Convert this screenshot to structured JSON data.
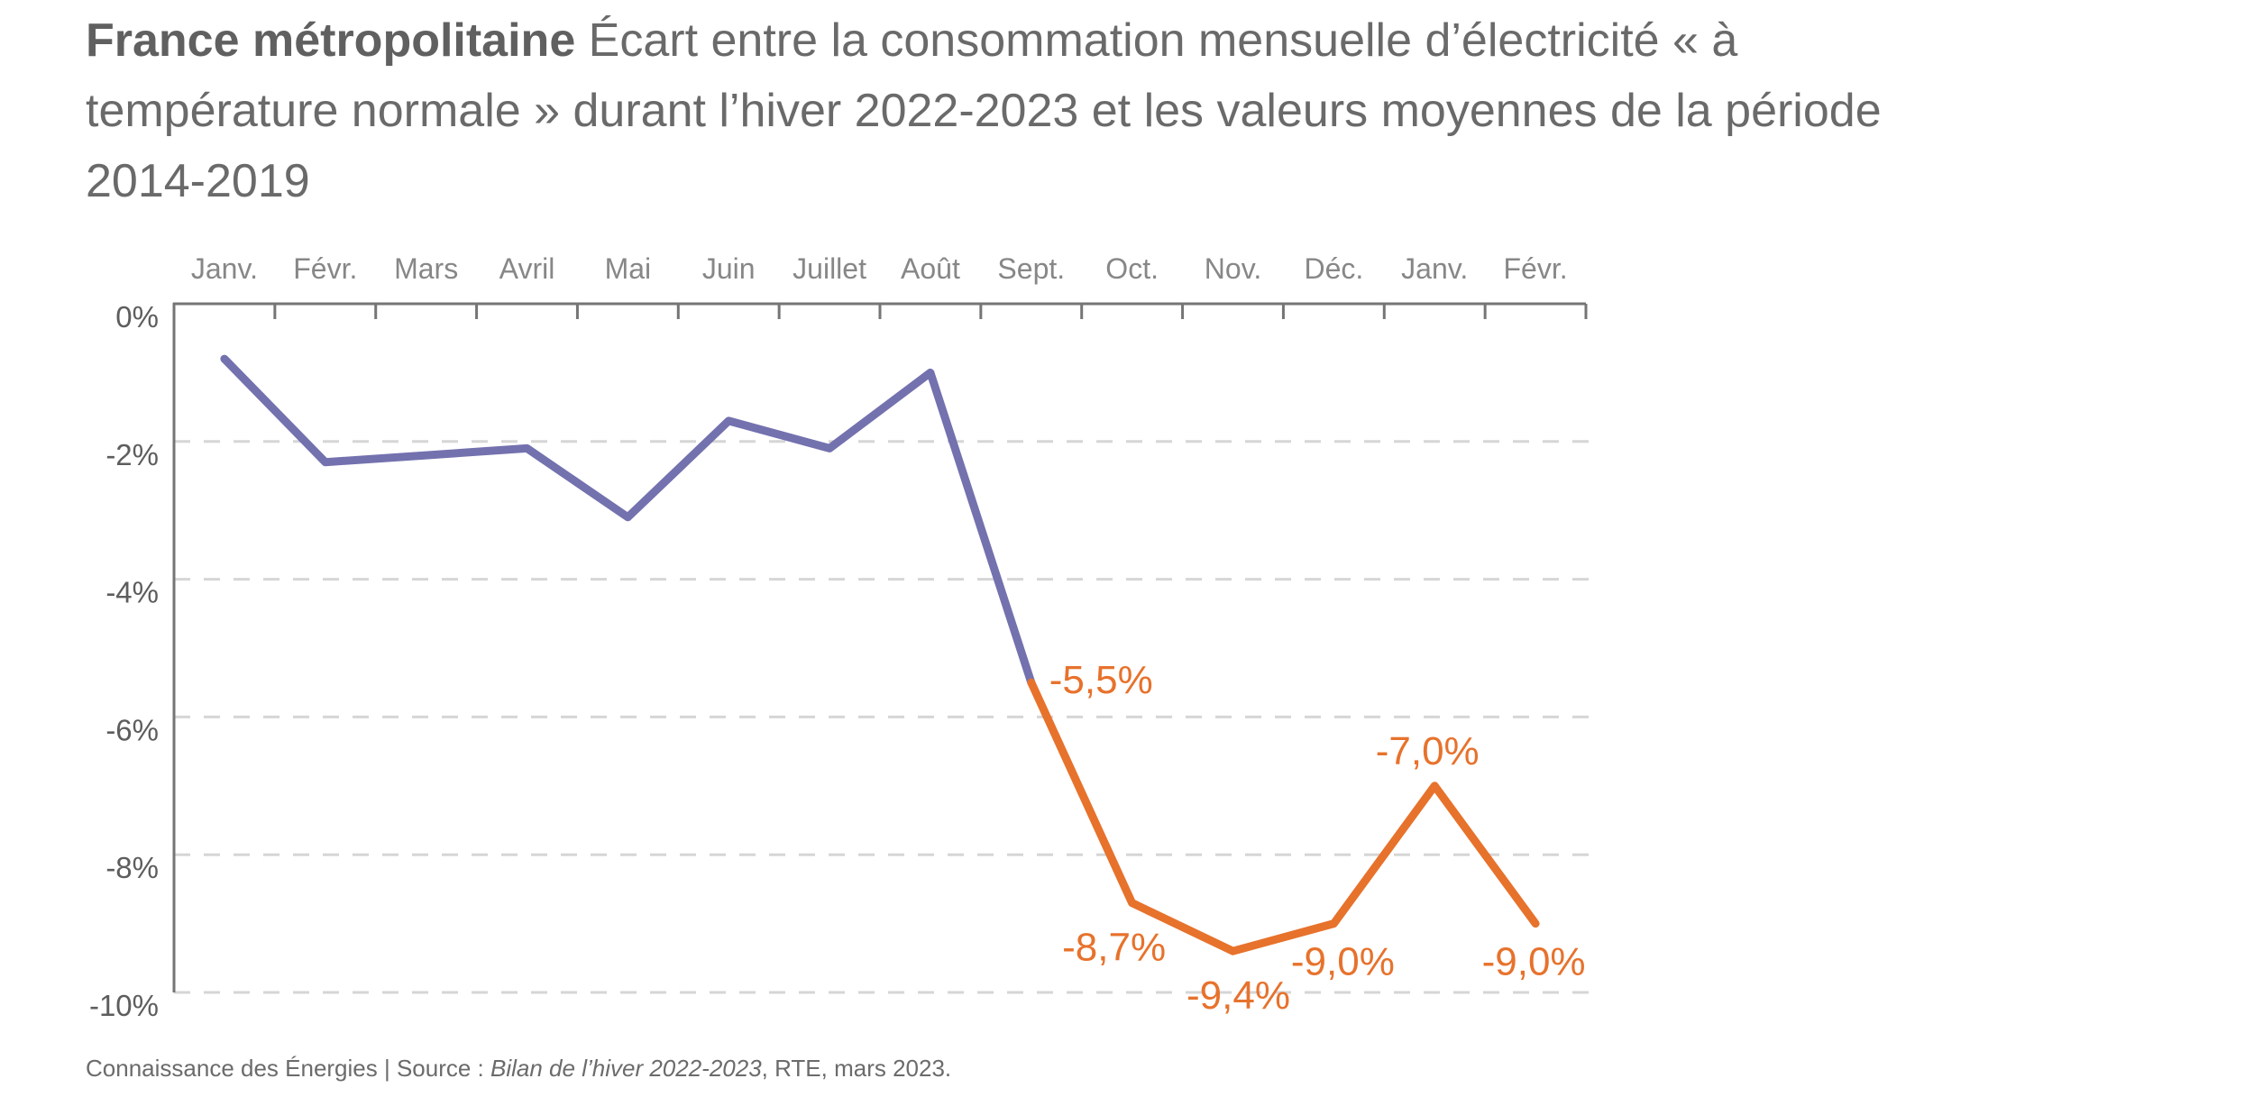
{
  "page": {
    "background": "#ffffff"
  },
  "title": {
    "line1_bold": "France métropolitaine",
    "line1_rest": " Écart entre la consommation mensuelle d’électricité « à",
    "line2": "température normale » durant l’hiver 2022-2023 et les valeurs moyennes de la période",
    "line3": "2014-2019"
  },
  "footer": {
    "prefix": "Connaissance des Énergies | Source : ",
    "italic": "Bilan de l’hiver 2022-2023",
    "suffix": ", RTE, mars 2023."
  },
  "chart_data": {
    "type": "line",
    "title": "France métropolitaine — Écart entre la consommation mensuelle d’électricité « à température normale » durant l’hiver 2022-2023 et les valeurs moyennes de la période 2014-2019",
    "categories": [
      "Janv.",
      "Févr.",
      "Mars",
      "Avril",
      "Mai",
      "Juin",
      "Juillet",
      "Août",
      "Sept.",
      "Oct.",
      "Nov.",
      "Déc.",
      "Janv.",
      "Févr."
    ],
    "y_tick_labels": [
      "0%",
      "-2%",
      "-4%",
      "-6%",
      "-8%",
      "-10%"
    ],
    "ylim": [
      -10,
      0
    ],
    "grid": "horizontal-dashed",
    "legend": "none",
    "series": [
      {
        "id": "reference-period-2014-2019",
        "color": "#7371ae",
        "start_index": 0,
        "values": [
          -0.8,
          -2.3,
          -2.2,
          -2.1,
          -3.1,
          -1.7,
          -2.1,
          -1.0,
          -5.5
        ]
      },
      {
        "id": "hiver-2022-2023",
        "color": "#e7722c",
        "start_index": 8,
        "values": [
          -5.5,
          -8.7,
          -9.4,
          -9.0,
          -7.0,
          -9.0
        ],
        "point_labels": [
          "-5,5%",
          "-8,7%",
          "-9,4%",
          "-9,0%",
          "-7,0%",
          "-9,0%"
        ]
      }
    ]
  }
}
